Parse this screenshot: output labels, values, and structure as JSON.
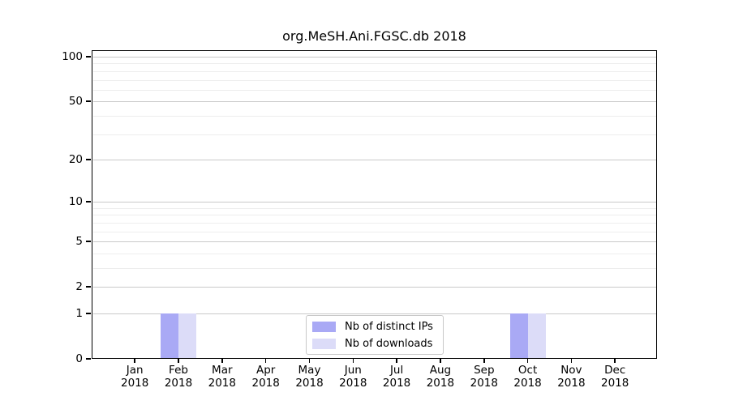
{
  "title": "org.MeSH.Ani.FGSC.db 2018",
  "chart_data": {
    "type": "bar",
    "title": "org.MeSH.Ani.FGSC.db 2018",
    "categories": [
      "Jan",
      "Feb",
      "Mar",
      "Apr",
      "May",
      "Jun",
      "Jul",
      "Aug",
      "Sep",
      "Oct",
      "Nov",
      "Dec"
    ],
    "x_year": "2018",
    "series": [
      {
        "name": "Nb of distinct IPs",
        "color": "#a9a9f5",
        "values": [
          0,
          1,
          0,
          0,
          0,
          0,
          0,
          0,
          0,
          1,
          0,
          0
        ]
      },
      {
        "name": "Nb of downloads",
        "color": "#dcdcf8",
        "values": [
          0,
          1,
          0,
          0,
          0,
          0,
          0,
          0,
          0,
          1,
          0,
          0
        ]
      }
    ],
    "xlabel": "",
    "ylabel": "",
    "y_scale": "log1p",
    "y_ticks": [
      0,
      1,
      2,
      5,
      10,
      20,
      50,
      100
    ],
    "y_minor_ticks": [
      3,
      4,
      6,
      7,
      8,
      9,
      30,
      40,
      60,
      70,
      80,
      90
    ],
    "ylim": [
      0,
      112
    ],
    "grid": "horizontal",
    "legend_position": "lower center"
  }
}
